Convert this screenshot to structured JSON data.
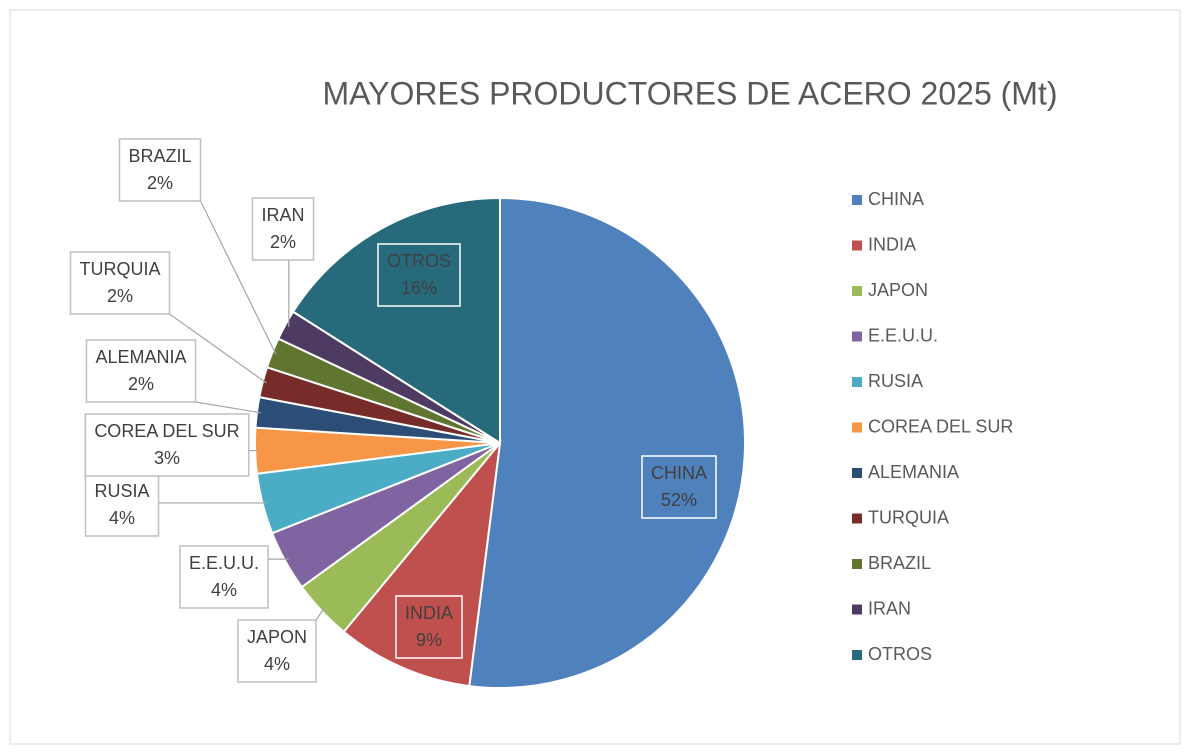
{
  "chart_data": {
    "type": "pie",
    "title": "MAYORES PRODUCTORES DE ACERO 2025 (Mt)",
    "categories": [
      "CHINA",
      "INDIA",
      "JAPON",
      "E.E.U.U.",
      "RUSIA",
      "COREA DEL SUR",
      "ALEMANIA",
      "TURQUIA",
      "BRAZIL",
      "IRAN",
      "OTROS"
    ],
    "values": [
      52,
      9,
      4,
      4,
      4,
      3,
      2,
      2,
      2,
      2,
      16
    ],
    "value_labels": [
      "52%",
      "9%",
      "4%",
      "4%",
      "4%",
      "3%",
      "2%",
      "2%",
      "2%",
      "2%",
      "16%"
    ],
    "colors": [
      "#4f81bd",
      "#c0504d",
      "#9bbb59",
      "#8064a2",
      "#4bacc6",
      "#f79646",
      "#2c4d75",
      "#772c2a",
      "#5f7530",
      "#4d3b62",
      "#276a7c"
    ],
    "legend": "right"
  }
}
